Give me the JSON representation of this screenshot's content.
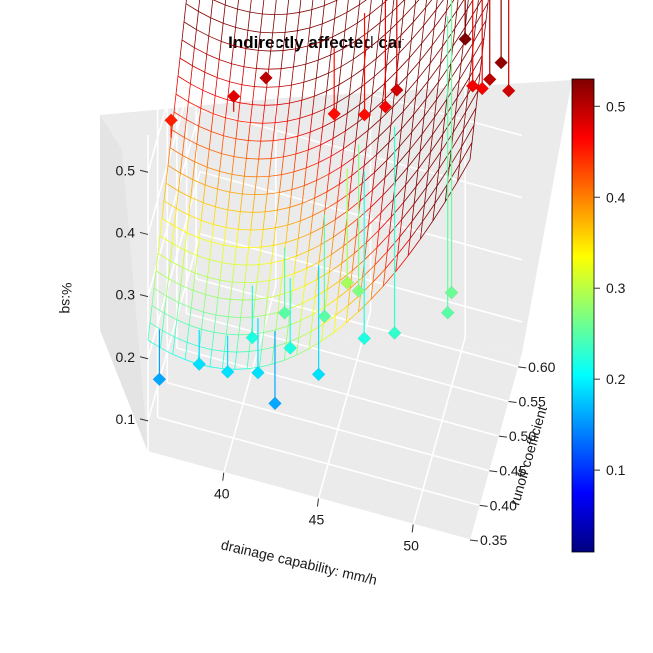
{
  "chart_data": {
    "type": "surface3d",
    "title": "Indirectly affected car",
    "xlabel": "drainage capability: mm/h",
    "ylabel": "runoff coefficient",
    "zlabel": "%:sq",
    "xlim": [
      36,
      53
    ],
    "ylim": [
      0.35,
      0.62
    ],
    "zlim": [
      0.05,
      0.56
    ],
    "x_ticks": [
      "40",
      "45",
      "50"
    ],
    "y_ticks": [
      "0.35",
      "0.40",
      "0.45",
      "0.50",
      "0.55",
      "0.60"
    ],
    "z_ticks": [
      "0.1",
      "0.2",
      "0.3",
      "0.4",
      "0.5"
    ],
    "colorbar": {
      "min": 0.01,
      "max": 0.53,
      "ticks": [
        "0.1",
        "0.2",
        "0.3",
        "0.4",
        "0.5"
      ],
      "palette": [
        "#00007F",
        "#0000FF",
        "#007FFF",
        "#00FFFF",
        "#7FFF7F",
        "#FFFF00",
        "#FF7F00",
        "#FF0000",
        "#7F0000"
      ]
    },
    "grid": true,
    "panel_color": "#EBEBEB",
    "grid_color": "#FFFFFF",
    "surface": {
      "x_range": [
        36,
        53
      ],
      "y_range": [
        0.35,
        0.62
      ],
      "model": "z = 0.23 - 0.012*(x-36) + 1.55*(y-0.35) + 0.0022*(x-36)^2 + 0.4*(y-0.35)^2"
    },
    "points": [
      {
        "x": 36.5,
        "y": 0.36,
        "z": 0.16
      },
      {
        "x": 38.5,
        "y": 0.37,
        "z": 0.19
      },
      {
        "x": 40.0,
        "y": 0.37,
        "z": 0.19
      },
      {
        "x": 41.5,
        "y": 0.38,
        "z": 0.19
      },
      {
        "x": 42.5,
        "y": 0.37,
        "z": 0.16
      },
      {
        "x": 41.0,
        "y": 0.4,
        "z": 0.22
      },
      {
        "x": 42.5,
        "y": 0.42,
        "z": 0.25
      },
      {
        "x": 43.0,
        "y": 0.4,
        "z": 0.22
      },
      {
        "x": 44.5,
        "y": 0.4,
        "z": 0.19
      },
      {
        "x": 44.5,
        "y": 0.43,
        "z": 0.25
      },
      {
        "x": 46.5,
        "y": 0.44,
        "z": 0.22
      },
      {
        "x": 45.5,
        "y": 0.45,
        "z": 0.29
      },
      {
        "x": 46.0,
        "y": 0.46,
        "z": 0.27
      },
      {
        "x": 48.0,
        "y": 0.45,
        "z": 0.23
      },
      {
        "x": 50.5,
        "y": 0.48,
        "z": 0.25
      },
      {
        "x": 50.5,
        "y": 0.5,
        "z": 0.26
      },
      {
        "x": 36.0,
        "y": 0.47,
        "z": 0.45
      },
      {
        "x": 39.0,
        "y": 0.5,
        "z": 0.48
      },
      {
        "x": 40.5,
        "y": 0.52,
        "z": 0.5
      },
      {
        "x": 44.0,
        "y": 0.53,
        "z": 0.46
      },
      {
        "x": 45.5,
        "y": 0.54,
        "z": 0.46
      },
      {
        "x": 46.5,
        "y": 0.55,
        "z": 0.47
      },
      {
        "x": 47.0,
        "y": 0.56,
        "z": 0.49
      },
      {
        "x": 50.5,
        "y": 0.61,
        "z": 0.47
      },
      {
        "x": 51.5,
        "y": 0.6,
        "z": 0.5
      },
      {
        "x": 50.0,
        "y": 0.62,
        "z": 0.53
      },
      {
        "x": 52.0,
        "y": 0.61,
        "z": 0.52
      },
      {
        "x": 52.5,
        "y": 0.6,
        "z": 0.49
      },
      {
        "x": 51.0,
        "y": 0.61,
        "z": 0.47
      }
    ]
  }
}
